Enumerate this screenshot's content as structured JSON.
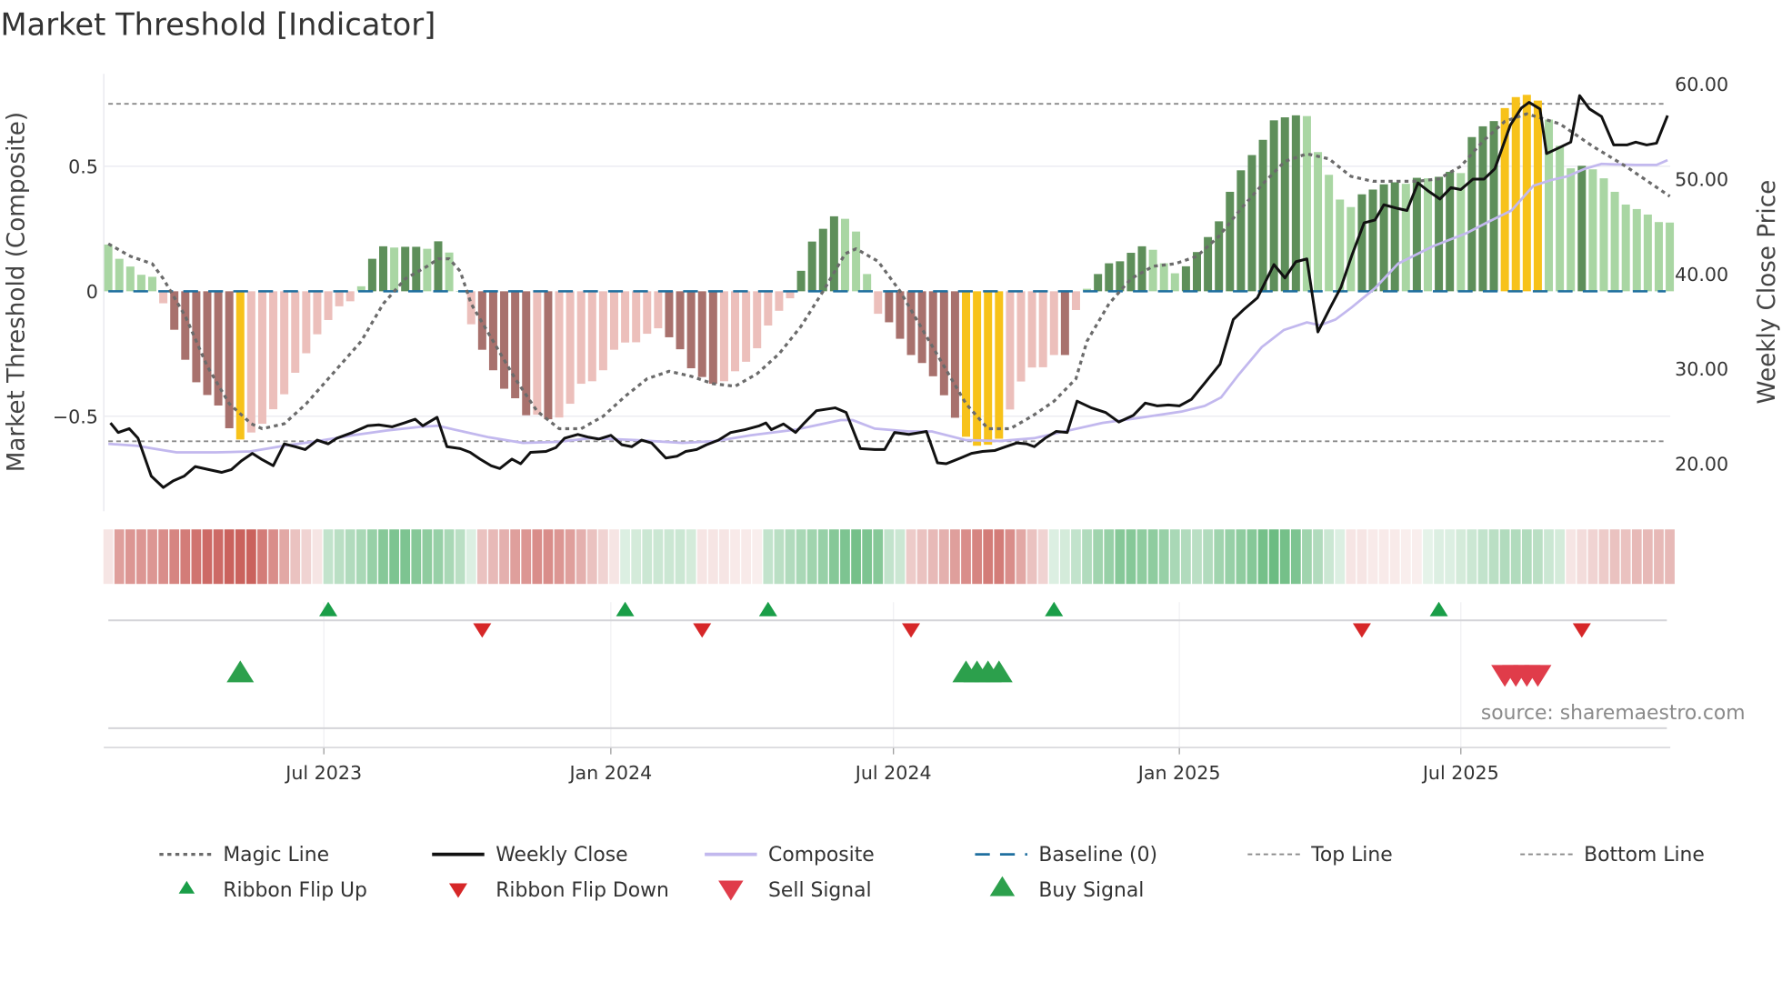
{
  "chart_data": {
    "type": "bar",
    "title": "Market Threshold [Indicator]",
    "ylabel_left": "Market Threshold (Composite)",
    "ylabel_right": "Weekly Close Price",
    "ylim_left": [
      -0.88,
      0.87
    ],
    "ylim_right": [
      15,
      61.1
    ],
    "x_unit": "week index",
    "xlim": [
      0.6,
      143.6
    ],
    "left_ticks": [
      {
        "value": 0.5,
        "label": "0.5"
      },
      {
        "value": 0,
        "label": "0"
      },
      {
        "value": -0.5,
        "label": "−0.5"
      }
    ],
    "right_ticks": [
      {
        "value": 60,
        "label": "60.00"
      },
      {
        "value": 50,
        "label": "50.00"
      },
      {
        "value": 40,
        "label": "40.00"
      },
      {
        "value": 30,
        "label": "30.00"
      },
      {
        "value": 20,
        "label": "20.00"
      }
    ],
    "x_ticks": [
      {
        "week": 20.6,
        "label": "Jul 2023"
      },
      {
        "week": 46.7,
        "label": "Jan 2024"
      },
      {
        "week": 72.4,
        "label": "Jul 2024"
      },
      {
        "week": 98.4,
        "label": "Jan 2025"
      },
      {
        "week": 124.0,
        "label": "Jul 2025"
      }
    ],
    "top_line": 0.75,
    "bottom_line": -0.6,
    "baseline": 0,
    "composite_bars": {
      "values": [
        0.187,
        0.13,
        0.099,
        0.066,
        0.058,
        -0.048,
        -0.154,
        -0.274,
        -0.364,
        -0.415,
        -0.457,
        -0.548,
        -0.593,
        -0.565,
        -0.53,
        -0.472,
        -0.412,
        -0.326,
        -0.248,
        -0.172,
        -0.115,
        -0.06,
        -0.04,
        0.02,
        0.13,
        0.18,
        0.175,
        0.178,
        0.178,
        0.17,
        0.2,
        0.155,
        0,
        -0.132,
        -0.234,
        -0.316,
        -0.39,
        -0.428,
        -0.496,
        -0.494,
        -0.512,
        -0.505,
        -0.45,
        -0.37,
        -0.36,
        -0.316,
        -0.234,
        -0.205,
        -0.204,
        -0.17,
        -0.148,
        -0.184,
        -0.232,
        -0.308,
        -0.343,
        -0.37,
        -0.36,
        -0.32,
        -0.282,
        -0.228,
        -0.137,
        -0.078,
        -0.028,
        0.082,
        0.199,
        0.25,
        0.3,
        0.29,
        0.239,
        0.069,
        -0.09,
        -0.124,
        -0.19,
        -0.255,
        -0.287,
        -0.34,
        -0.416,
        -0.506,
        -0.582,
        -0.618,
        -0.614,
        -0.59,
        -0.473,
        -0.361,
        -0.305,
        -0.304,
        -0.255,
        -0.255,
        -0.075,
        0.01,
        0.069,
        0.112,
        0.12,
        0.154,
        0.18,
        0.166,
        0.112,
        0.072,
        0.1,
        0.157,
        0.217,
        0.28,
        0.398,
        0.484,
        0.545,
        0.606,
        0.684,
        0.696,
        0.704,
        0.701,
        0.557,
        0.466,
        0.367,
        0.337,
        0.388,
        0.407,
        0.428,
        0.436,
        0.43,
        0.454,
        0.452,
        0.458,
        0.478,
        0.473,
        0.617,
        0.66,
        0.681,
        0.733,
        0.777,
        0.786,
        0.763,
        0.687,
        0.582,
        0.492,
        0.502,
        0.488,
        0.452,
        0.398,
        0.347,
        0.329,
        0.307,
        0.277,
        0.275
      ],
      "shades": "LLLLLLDDDDDDYLLLLLLLLLLLDDLDDLDLLLDDDDDLDLLLLLLLLLLDDDDDLLLLLLLDDDDLLLLDDDDDDDYYYYLLLLLDLLDDDDDLLLDDDDDDDDDDDLLLLLDDDDLDLDDLDDDYYYYLLLDLLLLLLLL"
    },
    "magic_line": [
      [
        1,
        0.19
      ],
      [
        3,
        0.14
      ],
      [
        5,
        0.11
      ],
      [
        6,
        0.05
      ],
      [
        8,
        -0.1
      ],
      [
        10,
        -0.3
      ],
      [
        12,
        -0.45
      ],
      [
        14,
        -0.53
      ],
      [
        15,
        -0.55
      ],
      [
        17,
        -0.53
      ],
      [
        19,
        -0.45
      ],
      [
        21,
        -0.35
      ],
      [
        24,
        -0.2
      ],
      [
        26,
        -0.05
      ],
      [
        28,
        0.05
      ],
      [
        30,
        0.1
      ],
      [
        31,
        0.13
      ],
      [
        32,
        0.13
      ],
      [
        33,
        0.08
      ],
      [
        34,
        -0.05
      ],
      [
        36,
        -0.2
      ],
      [
        38,
        -0.35
      ],
      [
        40,
        -0.48
      ],
      [
        42,
        -0.55
      ],
      [
        44,
        -0.55
      ],
      [
        46,
        -0.5
      ],
      [
        48,
        -0.42
      ],
      [
        50,
        -0.35
      ],
      [
        52,
        -0.32
      ],
      [
        54,
        -0.34
      ],
      [
        56,
        -0.37
      ],
      [
        58,
        -0.38
      ],
      [
        60,
        -0.33
      ],
      [
        62,
        -0.25
      ],
      [
        64,
        -0.14
      ],
      [
        66,
        0.0
      ],
      [
        68,
        0.15
      ],
      [
        69,
        0.17
      ],
      [
        71,
        0.12
      ],
      [
        73,
        0.0
      ],
      [
        75,
        -0.15
      ],
      [
        77,
        -0.3
      ],
      [
        79,
        -0.45
      ],
      [
        81,
        -0.55
      ],
      [
        83,
        -0.55
      ],
      [
        85,
        -0.5
      ],
      [
        87,
        -0.44
      ],
      [
        89,
        -0.35
      ],
      [
        90,
        -0.2
      ],
      [
        92,
        -0.05
      ],
      [
        94,
        0.05
      ],
      [
        96,
        0.1
      ],
      [
        98,
        0.11
      ],
      [
        100,
        0.14
      ],
      [
        102,
        0.22
      ],
      [
        104,
        0.33
      ],
      [
        106,
        0.43
      ],
      [
        108,
        0.52
      ],
      [
        110,
        0.55
      ],
      [
        112,
        0.53
      ],
      [
        114,
        0.46
      ],
      [
        116,
        0.44
      ],
      [
        118,
        0.44
      ],
      [
        120,
        0.44
      ],
      [
        122,
        0.45
      ],
      [
        124,
        0.5
      ],
      [
        126,
        0.6
      ],
      [
        128,
        0.68
      ],
      [
        130,
        0.71
      ],
      [
        133,
        0.67
      ],
      [
        136,
        0.58
      ],
      [
        139,
        0.5
      ],
      [
        143,
        0.38
      ]
    ],
    "weekly_close": [
      [
        1.2,
        24.3
      ],
      [
        1.9,
        23.3
      ],
      [
        2.9,
        23.7
      ],
      [
        3.7,
        22.7
      ],
      [
        4.9,
        18.7
      ],
      [
        6.0,
        17.5
      ],
      [
        6.9,
        18.2
      ],
      [
        7.9,
        18.7
      ],
      [
        8.9,
        19.7
      ],
      [
        10.1,
        19.4
      ],
      [
        11.3,
        19.1
      ],
      [
        12.2,
        19.4
      ],
      [
        13.1,
        20.3
      ],
      [
        14.1,
        21.1
      ],
      [
        14.9,
        20.5
      ],
      [
        16.0,
        19.8
      ],
      [
        17.0,
        22.1
      ],
      [
        18.0,
        21.8
      ],
      [
        18.9,
        21.5
      ],
      [
        20.0,
        22.5
      ],
      [
        21.0,
        22.1
      ],
      [
        21.8,
        22.7
      ],
      [
        23.2,
        23.3
      ],
      [
        24.6,
        24.0
      ],
      [
        25.6,
        24.1
      ],
      [
        26.8,
        23.9
      ],
      [
        27.9,
        24.3
      ],
      [
        28.9,
        24.7
      ],
      [
        29.6,
        24.0
      ],
      [
        30.9,
        24.9
      ],
      [
        31.8,
        21.8
      ],
      [
        33.0,
        21.6
      ],
      [
        33.9,
        21.2
      ],
      [
        34.8,
        20.5
      ],
      [
        35.8,
        19.8
      ],
      [
        36.6,
        19.5
      ],
      [
        37.7,
        20.5
      ],
      [
        38.5,
        20.0
      ],
      [
        39.4,
        21.2
      ],
      [
        40.8,
        21.3
      ],
      [
        41.7,
        21.7
      ],
      [
        42.5,
        22.7
      ],
      [
        43.7,
        23.1
      ],
      [
        44.7,
        22.8
      ],
      [
        45.6,
        22.6
      ],
      [
        46.7,
        23.0
      ],
      [
        47.7,
        22.0
      ],
      [
        48.6,
        21.8
      ],
      [
        49.5,
        22.5
      ],
      [
        50.4,
        22.2
      ],
      [
        51.7,
        20.6
      ],
      [
        52.7,
        20.8
      ],
      [
        53.5,
        21.3
      ],
      [
        54.5,
        21.5
      ],
      [
        55.4,
        22.0
      ],
      [
        56.5,
        22.5
      ],
      [
        57.6,
        23.3
      ],
      [
        58.9,
        23.6
      ],
      [
        60.2,
        24.0
      ],
      [
        60.8,
        24.3
      ],
      [
        61.3,
        23.6
      ],
      [
        62.4,
        24.2
      ],
      [
        63.5,
        23.3
      ],
      [
        64.3,
        24.3
      ],
      [
        65.4,
        25.6
      ],
      [
        67.1,
        25.9
      ],
      [
        68.1,
        25.4
      ],
      [
        69.4,
        21.6
      ],
      [
        70.7,
        21.5
      ],
      [
        71.6,
        21.5
      ],
      [
        72.5,
        23.3
      ],
      [
        73.8,
        23.1
      ],
      [
        75.4,
        23.4
      ],
      [
        76.4,
        20.1
      ],
      [
        77.2,
        20.0
      ],
      [
        78.5,
        20.6
      ],
      [
        79.5,
        21.1
      ],
      [
        80.5,
        21.3
      ],
      [
        81.6,
        21.4
      ],
      [
        82.6,
        21.8
      ],
      [
        83.6,
        22.2
      ],
      [
        84.5,
        22.1
      ],
      [
        85.2,
        21.8
      ],
      [
        86.2,
        22.7
      ],
      [
        87.2,
        23.4
      ],
      [
        88.2,
        23.3
      ],
      [
        89.1,
        26.6
      ],
      [
        90.4,
        25.9
      ],
      [
        91.7,
        25.4
      ],
      [
        92.9,
        24.4
      ],
      [
        94.2,
        25.1
      ],
      [
        95.3,
        26.4
      ],
      [
        96.4,
        26.1
      ],
      [
        97.4,
        26.2
      ],
      [
        98.4,
        26.1
      ],
      [
        99.5,
        26.8
      ],
      [
        100.7,
        28.5
      ],
      [
        102.1,
        30.5
      ],
      [
        103.3,
        35.2
      ],
      [
        104.3,
        36.3
      ],
      [
        105.5,
        37.5
      ],
      [
        107.0,
        41.0
      ],
      [
        108.0,
        39.6
      ],
      [
        109.0,
        41.3
      ],
      [
        110.0,
        41.6
      ],
      [
        111.0,
        33.9
      ],
      [
        112.1,
        36.4
      ],
      [
        113.1,
        38.6
      ],
      [
        114.1,
        42.0
      ],
      [
        115.2,
        45.4
      ],
      [
        116.2,
        45.7
      ],
      [
        117.0,
        47.3
      ],
      [
        118.3,
        46.9
      ],
      [
        119.1,
        46.7
      ],
      [
        120.1,
        49.6
      ],
      [
        121.1,
        48.7
      ],
      [
        122.1,
        47.9
      ],
      [
        123.1,
        49.1
      ],
      [
        124.0,
        48.9
      ],
      [
        125.1,
        50.0
      ],
      [
        126.1,
        50.0
      ],
      [
        127.1,
        51.1
      ],
      [
        128.5,
        55.7
      ],
      [
        129.5,
        57.5
      ],
      [
        130.2,
        58.1
      ],
      [
        131.2,
        57.4
      ],
      [
        131.8,
        52.7
      ],
      [
        133.1,
        53.4
      ],
      [
        134.0,
        53.9
      ],
      [
        134.8,
        58.8
      ],
      [
        135.7,
        57.4
      ],
      [
        136.8,
        56.6
      ],
      [
        137.9,
        53.6
      ],
      [
        139.1,
        53.6
      ],
      [
        139.9,
        53.9
      ],
      [
        140.9,
        53.6
      ],
      [
        141.8,
        53.8
      ],
      [
        142.8,
        56.7
      ]
    ],
    "composite_line": [
      [
        1,
        22.1
      ],
      [
        3.6,
        21.9
      ],
      [
        5.1,
        21.6
      ],
      [
        7.2,
        21.2
      ],
      [
        10.8,
        21.2
      ],
      [
        13.9,
        21.3
      ],
      [
        17.0,
        21.9
      ],
      [
        20.1,
        22.4
      ],
      [
        23.2,
        23.0
      ],
      [
        26.3,
        23.5
      ],
      [
        29.4,
        23.9
      ],
      [
        31.0,
        24.0
      ],
      [
        32.5,
        23.6
      ],
      [
        35.6,
        22.8
      ],
      [
        38.7,
        22.2
      ],
      [
        41.8,
        22.3
      ],
      [
        44.9,
        22.7
      ],
      [
        49.0,
        22.5
      ],
      [
        53.2,
        22.2
      ],
      [
        56.3,
        22.4
      ],
      [
        59.4,
        23.0
      ],
      [
        63.5,
        23.6
      ],
      [
        67.6,
        24.6
      ],
      [
        68.7,
        24.6
      ],
      [
        70.7,
        23.7
      ],
      [
        73.8,
        23.4
      ],
      [
        75.9,
        23.4
      ],
      [
        79.0,
        22.5
      ],
      [
        82.1,
        22.4
      ],
      [
        85.2,
        22.7
      ],
      [
        88.3,
        23.5
      ],
      [
        91.4,
        24.3
      ],
      [
        94.5,
        24.8
      ],
      [
        98.6,
        25.5
      ],
      [
        100.7,
        26.1
      ],
      [
        102.2,
        27.0
      ],
      [
        103.8,
        29.4
      ],
      [
        105.9,
        32.3
      ],
      [
        107.9,
        34.1
      ],
      [
        110.0,
        34.9
      ],
      [
        111.2,
        34.6
      ],
      [
        112.6,
        35.2
      ],
      [
        114.1,
        36.5
      ],
      [
        116.2,
        38.5
      ],
      [
        118.3,
        41.1
      ],
      [
        121.4,
        42.9
      ],
      [
        124.5,
        44.3
      ],
      [
        126.5,
        45.5
      ],
      [
        128.6,
        46.7
      ],
      [
        130.6,
        49.3
      ],
      [
        132.2,
        49.9
      ],
      [
        133.7,
        50.3
      ],
      [
        135.3,
        51.1
      ],
      [
        136.8,
        51.6
      ],
      [
        139.9,
        51.5
      ],
      [
        141.8,
        51.5
      ],
      [
        142.8,
        52.0
      ]
    ],
    "ribbon": [
      -0.15,
      -0.55,
      -0.6,
      -0.6,
      -0.6,
      -0.65,
      -0.7,
      -0.75,
      -0.8,
      -0.85,
      -0.85,
      -0.9,
      -0.9,
      -0.9,
      -0.75,
      -0.65,
      -0.5,
      -0.35,
      -0.25,
      -0.15,
      0.35,
      0.4,
      0.45,
      0.5,
      0.6,
      0.7,
      0.75,
      0.75,
      0.7,
      0.65,
      0.6,
      0.5,
      0.4,
      0.2,
      -0.35,
      -0.4,
      -0.45,
      -0.55,
      -0.6,
      -0.65,
      -0.65,
      -0.6,
      -0.55,
      -0.45,
      -0.35,
      -0.25,
      -0.15,
      0.2,
      0.25,
      0.3,
      0.3,
      0.3,
      0.3,
      0.25,
      -0.15,
      -0.15,
      -0.15,
      -0.12,
      -0.12,
      -0.1,
      0.35,
      0.4,
      0.45,
      0.5,
      0.55,
      0.6,
      0.7,
      0.75,
      0.8,
      0.75,
      0.7,
      0.35,
      0.3,
      -0.3,
      -0.35,
      -0.4,
      -0.45,
      -0.55,
      -0.65,
      -0.7,
      -0.75,
      -0.75,
      -0.65,
      -0.5,
      -0.35,
      -0.25,
      0.2,
      0.25,
      0.35,
      0.45,
      0.55,
      0.6,
      0.7,
      0.7,
      0.65,
      0.65,
      0.6,
      0.5,
      0.45,
      0.4,
      0.45,
      0.55,
      0.6,
      0.65,
      0.7,
      0.8,
      0.85,
      0.8,
      0.75,
      0.55,
      0.45,
      0.3,
      0.2,
      -0.15,
      -0.15,
      -0.12,
      -0.12,
      -0.12,
      -0.1,
      -0.1,
      0.15,
      0.2,
      0.2,
      0.25,
      0.3,
      0.35,
      0.4,
      0.45,
      0.45,
      0.45,
      0.4,
      0.3,
      0.25,
      -0.15,
      -0.2,
      -0.25,
      -0.3,
      -0.35,
      -0.35,
      -0.4,
      -0.4,
      -0.4,
      -0.4
    ],
    "ribbon_flip_up": [
      21,
      48,
      61,
      87,
      122
    ],
    "ribbon_flip_down": [
      35,
      55,
      74,
      115,
      135
    ],
    "buy_signals": [
      13,
      79,
      80,
      81,
      82
    ],
    "sell_signals": [
      128,
      129,
      130,
      131
    ],
    "legend": {
      "placement": "bottom",
      "row1": [
        "Magic Line",
        "Weekly Close",
        "Composite",
        "Baseline (0)",
        "Top Line",
        "Bottom Line"
      ],
      "row2": [
        "Ribbon Flip Up",
        "Ribbon Flip Down",
        "Sell Signal",
        "Buy Signal"
      ]
    },
    "source": "source: sharemaestro.com",
    "colors": {
      "bar_pos_strong": "#5e8f5a",
      "bar_pos_weak": "#a9d6a3",
      "bar_neg_strong": "#a8716d",
      "bar_neg_weak": "#ecbfbb",
      "bar_extreme": "#f7c21a",
      "magic": "#6b6b6b",
      "close": "#111111",
      "composite": "#c2b8ee",
      "baseline": "#1f6f9f",
      "ref": "#8a8a8a",
      "ribbon_pos": "#52b06c",
      "ribbon_neg": "#c4504b",
      "flip_up": "#1a9e48",
      "flip_down": "#d62728",
      "buy": "#2ca04c",
      "sell": "#e03c4a"
    }
  }
}
